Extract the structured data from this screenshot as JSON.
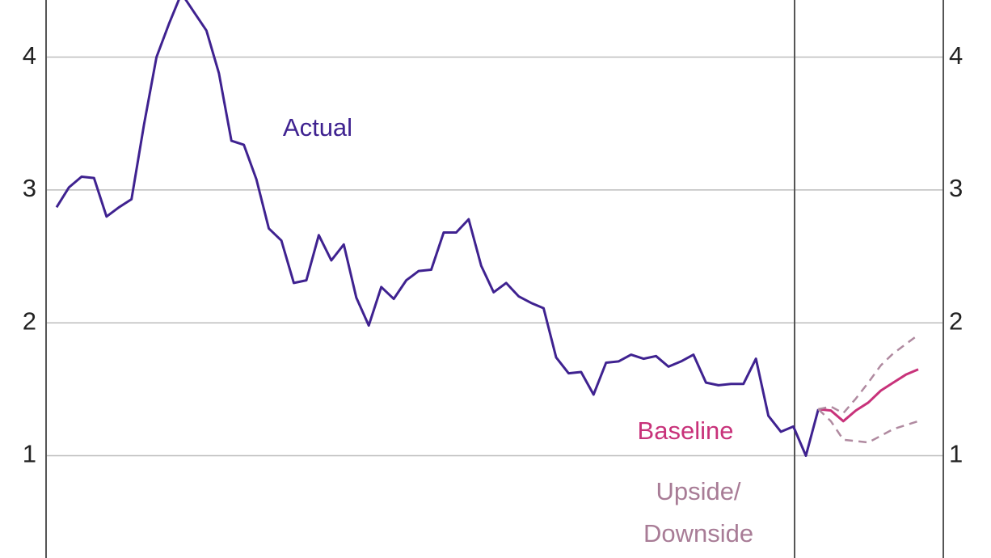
{
  "chart_data": {
    "type": "line",
    "categories": [
      null,
      null,
      null,
      null,
      null,
      null,
      null,
      null,
      null,
      null,
      null,
      null,
      null,
      null,
      null,
      null,
      null,
      null,
      null,
      null,
      null,
      null,
      null,
      null,
      null,
      null,
      null,
      null,
      null,
      null,
      null,
      null,
      null,
      null,
      null,
      null,
      null,
      null,
      null,
      null,
      null,
      null,
      null,
      null,
      null,
      null,
      null,
      null,
      null,
      null,
      null,
      null,
      null,
      null,
      null,
      null,
      null,
      null,
      null,
      null,
      null,
      null,
      null,
      null,
      null,
      null,
      null,
      null,
      null,
      null
    ],
    "series": [
      {
        "name": "Actual",
        "color": "#3f2290",
        "dashed": false,
        "values": [
          2.87,
          3.02,
          3.1,
          3.09,
          2.8,
          2.87,
          2.93,
          3.49,
          4.0,
          4.25,
          4.48,
          4.34,
          4.2,
          3.88,
          3.37,
          3.34,
          3.08,
          2.71,
          2.62,
          2.3,
          2.32,
          2.66,
          2.47,
          2.59,
          2.19,
          1.98,
          2.27,
          2.18,
          2.32,
          2.39,
          2.4,
          2.68,
          2.68,
          2.78,
          2.43,
          2.23,
          2.3,
          2.2,
          2.15,
          2.11,
          1.74,
          1.62,
          1.63,
          1.46,
          1.7,
          1.71,
          1.76,
          1.73,
          1.75,
          1.67,
          1.71,
          1.76,
          1.55,
          1.53,
          1.54,
          1.54,
          1.73,
          1.3,
          1.18,
          1.22,
          1.0,
          1.35,
          null,
          null,
          null,
          null,
          null,
          null,
          null,
          null
        ]
      },
      {
        "name": "Baseline",
        "color": "#c8327a",
        "dashed": false,
        "values": [
          null,
          null,
          null,
          null,
          null,
          null,
          null,
          null,
          null,
          null,
          null,
          null,
          null,
          null,
          null,
          null,
          null,
          null,
          null,
          null,
          null,
          null,
          null,
          null,
          null,
          null,
          null,
          null,
          null,
          null,
          null,
          null,
          null,
          null,
          null,
          null,
          null,
          null,
          null,
          null,
          null,
          null,
          null,
          null,
          null,
          null,
          null,
          null,
          null,
          null,
          null,
          null,
          null,
          null,
          null,
          null,
          null,
          null,
          null,
          null,
          null,
          1.35,
          1.34,
          1.26,
          1.34,
          1.4,
          1.49,
          1.55,
          1.61,
          1.65
        ]
      },
      {
        "color": "#b08aa0",
        "dashed": true,
        "values": [
          null,
          null,
          null,
          null,
          null,
          null,
          null,
          null,
          null,
          null,
          null,
          null,
          null,
          null,
          null,
          null,
          null,
          null,
          null,
          null,
          null,
          null,
          null,
          null,
          null,
          null,
          null,
          null,
          null,
          null,
          null,
          null,
          null,
          null,
          null,
          null,
          null,
          null,
          null,
          null,
          null,
          null,
          null,
          null,
          null,
          null,
          null,
          null,
          null,
          null,
          null,
          null,
          null,
          null,
          null,
          null,
          null,
          null,
          null,
          null,
          null,
          1.35,
          1.37,
          1.32,
          1.43,
          1.55,
          1.68,
          1.77,
          1.84,
          1.91
        ]
      },
      {
        "color": "#b08aa0",
        "dashed": true,
        "values": [
          null,
          null,
          null,
          null,
          null,
          null,
          null,
          null,
          null,
          null,
          null,
          null,
          null,
          null,
          null,
          null,
          null,
          null,
          null,
          null,
          null,
          null,
          null,
          null,
          null,
          null,
          null,
          null,
          null,
          null,
          null,
          null,
          null,
          null,
          null,
          null,
          null,
          null,
          null,
          null,
          null,
          null,
          null,
          null,
          null,
          null,
          null,
          null,
          null,
          null,
          null,
          null,
          null,
          null,
          null,
          null,
          null,
          null,
          null,
          null,
          null,
          1.35,
          1.26,
          1.12,
          1.11,
          1.1,
          1.15,
          1.2,
          1.23,
          1.26
        ]
      }
    ],
    "annotations": [
      "Upside/",
      "Downside"
    ],
    "annotation_color": "#a87c96",
    "ylim": [
      0.23,
      4.43
    ],
    "yticks": [
      1,
      2,
      3,
      4
    ],
    "y2ticks": [
      1,
      2,
      3,
      4
    ],
    "grid": true
  }
}
